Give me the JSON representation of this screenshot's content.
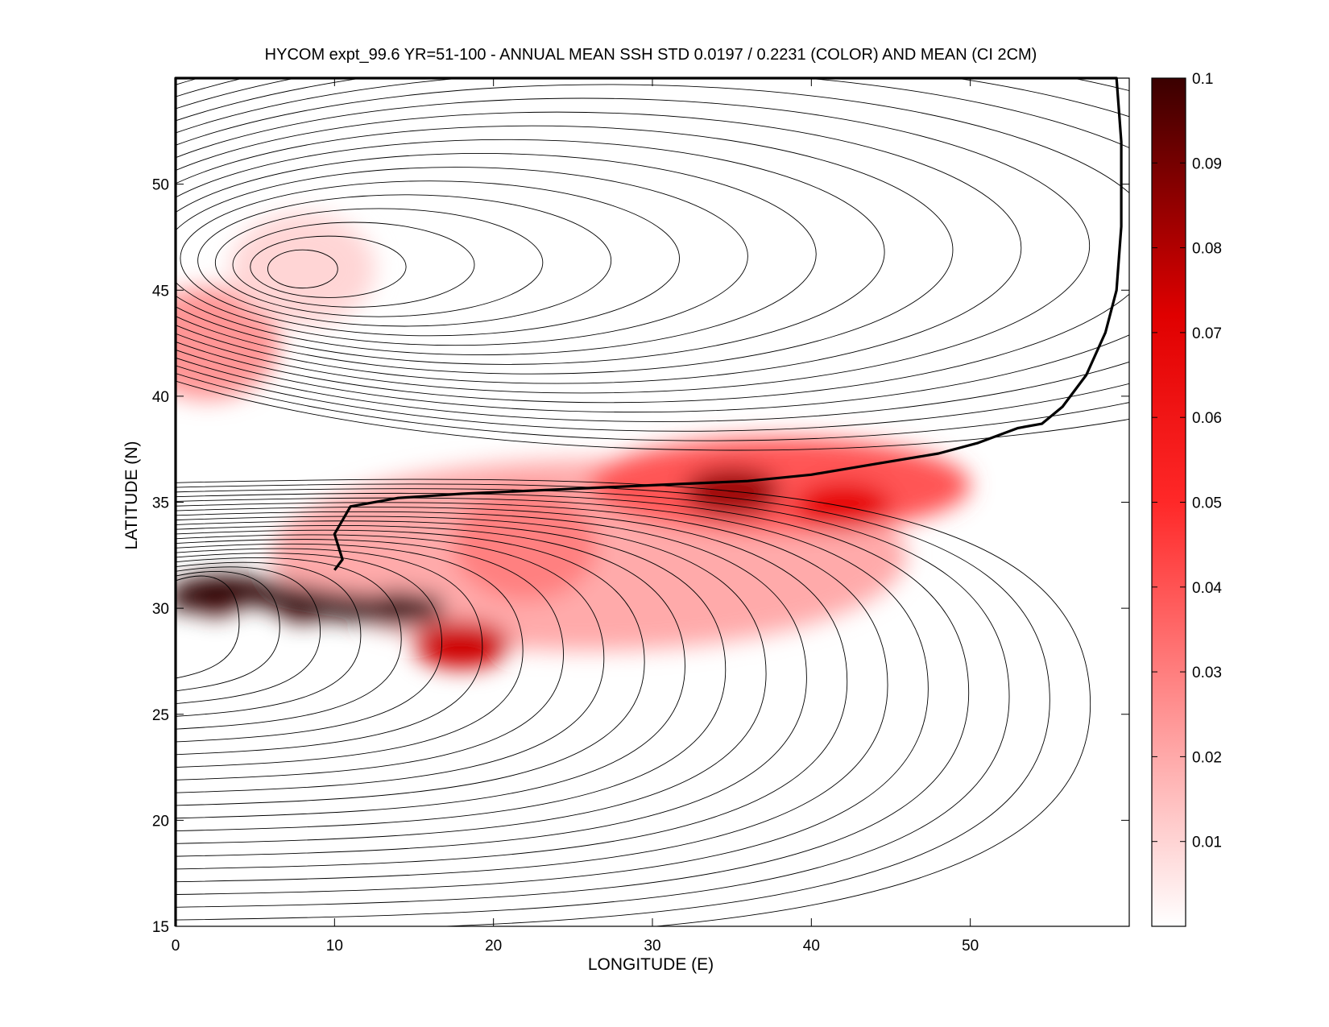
{
  "chart_data": {
    "type": "heatmap",
    "title": "HYCOM expt_99.6 YR=51-100 - ANNUAL MEAN SSH STD 0.0197 / 0.2231 (COLOR) AND MEAN (CI 2CM)",
    "xlabel": "LONGITUDE (E)",
    "ylabel": "LATITUDE (N)",
    "xlim": [
      0,
      60
    ],
    "ylim": [
      15,
      55
    ],
    "x_ticks": [
      "0",
      "10",
      "20",
      "30",
      "40",
      "50"
    ],
    "x_tick_values": [
      0,
      10,
      20,
      30,
      40,
      50
    ],
    "y_ticks": [
      "15",
      "20",
      "25",
      "30",
      "35",
      "40",
      "45",
      "50"
    ],
    "y_tick_values": [
      15,
      20,
      25,
      30,
      35,
      40,
      45,
      50
    ],
    "colorbar": {
      "min": 0,
      "max": 0.1,
      "ticks": [
        "0.01",
        "0.02",
        "0.03",
        "0.04",
        "0.05",
        "0.06",
        "0.07",
        "0.08",
        "0.09",
        "0.1"
      ],
      "tick_values": [
        0.01,
        0.02,
        0.03,
        0.04,
        0.05,
        0.06,
        0.07,
        0.08,
        0.09,
        0.1
      ],
      "colors": [
        "#ffffff",
        "#ff0000",
        "#000000"
      ]
    },
    "std_field_features": [
      {
        "lon": 2.5,
        "lat": 30.5,
        "value": 0.1
      },
      {
        "lon": 8,
        "lat": 30.2,
        "value": 0.1
      },
      {
        "lon": 14,
        "lat": 30,
        "value": 0.1
      },
      {
        "lon": 18,
        "lat": 28.3,
        "value": 0.07
      },
      {
        "lon": 22,
        "lat": 33,
        "value": 0.03
      },
      {
        "lon": 35,
        "lat": 35.5,
        "value": 0.08
      },
      {
        "lon": 42,
        "lat": 34.8,
        "value": 0.065
      },
      {
        "lon": 2,
        "lat": 42.5,
        "value": 0.025
      },
      {
        "lon": 8,
        "lat": 46,
        "value": 0.01
      }
    ],
    "zero_contour": [
      [
        0,
        15
      ],
      [
        0,
        55
      ],
      [
        49,
        55
      ],
      [
        59.2,
        55
      ],
      [
        59.5,
        52
      ],
      [
        59.5,
        48
      ],
      [
        59.2,
        45
      ],
      [
        58.5,
        43
      ],
      [
        57.3,
        41
      ],
      [
        55.8,
        39.5
      ],
      [
        54.5,
        38.7
      ],
      [
        53,
        38.5
      ],
      [
        50.5,
        37.8
      ],
      [
        48,
        37.3
      ],
      [
        44,
        36.8
      ],
      [
        40,
        36.3
      ],
      [
        36,
        36
      ],
      [
        30,
        35.8
      ],
      [
        24,
        35.6
      ],
      [
        18,
        35.4
      ],
      [
        14,
        35.2
      ],
      [
        11,
        34.8
      ],
      [
        10,
        33.5
      ],
      [
        10.5,
        32.3
      ],
      [
        10,
        31.8
      ]
    ],
    "mean_contour_interval": "2 cm",
    "grid": false,
    "legend": "none"
  }
}
